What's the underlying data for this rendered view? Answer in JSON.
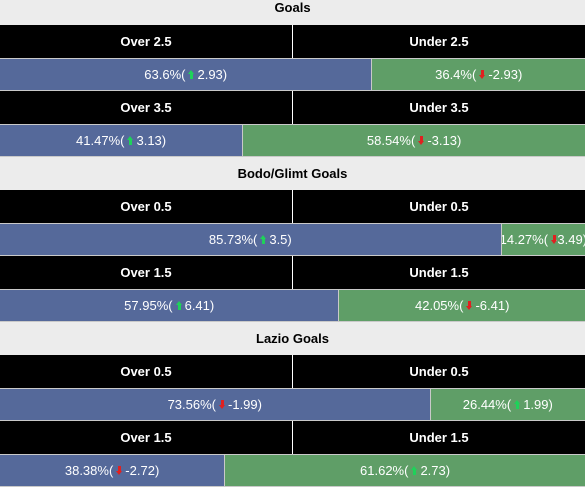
{
  "colors": {
    "over": "#55699a",
    "under": "#5f9e67",
    "header_bg": "#000000",
    "title_bg": "#ececec",
    "up_arrow": "#1fd15a",
    "down_arrow": "#e02020"
  },
  "sections": [
    {
      "title": "Goals",
      "markets": [
        {
          "over_label": "Over 2.5",
          "under_label": "Under 2.5",
          "over_pct": "63.6%",
          "over_change": "2.93",
          "over_dir": "up",
          "under_pct": "36.4%",
          "under_change": "-2.93",
          "under_dir": "down",
          "over_share": 63.6
        },
        {
          "over_label": "Over 3.5",
          "under_label": "Under 3.5",
          "over_pct": "41.47%",
          "over_change": "3.13",
          "over_dir": "up",
          "under_pct": "58.54%",
          "under_change": "-3.13",
          "under_dir": "down",
          "over_share": 41.47
        }
      ]
    },
    {
      "title": "Bodo/Glimt Goals",
      "markets": [
        {
          "over_label": "Over 0.5",
          "under_label": "Under 0.5",
          "over_pct": "85.73%",
          "over_change": "3.5",
          "over_dir": "up",
          "under_pct": "14.27%",
          "under_change": "-3.49",
          "under_dir": "down",
          "over_share": 85.73
        },
        {
          "over_label": "Over 1.5",
          "under_label": "Under 1.5",
          "over_pct": "57.95%",
          "over_change": "6.41",
          "over_dir": "up",
          "under_pct": "42.05%",
          "under_change": "-6.41",
          "under_dir": "down",
          "over_share": 57.95
        }
      ]
    },
    {
      "title": "Lazio Goals",
      "markets": [
        {
          "over_label": "Over 0.5",
          "under_label": "Under 0.5",
          "over_pct": "73.56%",
          "over_change": "-1.99",
          "over_dir": "down",
          "under_pct": "26.44%",
          "under_change": "1.99",
          "under_dir": "up",
          "over_share": 73.56
        },
        {
          "over_label": "Over 1.5",
          "under_label": "Under 1.5",
          "over_pct": "38.38%",
          "over_change": "-2.72",
          "over_dir": "down",
          "under_pct": "61.62%",
          "under_change": "2.73",
          "under_dir": "up",
          "over_share": 38.38
        }
      ]
    }
  ]
}
